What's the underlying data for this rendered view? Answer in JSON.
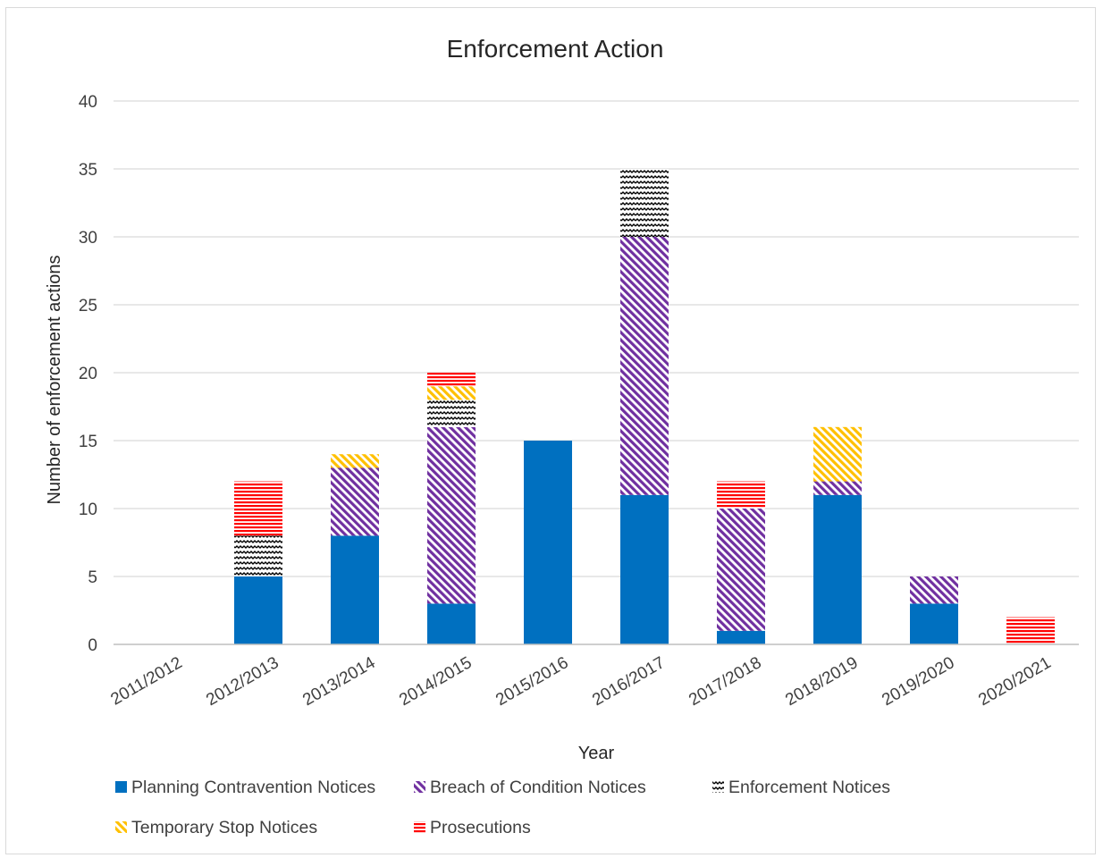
{
  "chart_data": {
    "type": "bar",
    "stacked": true,
    "title": "Enforcement Action",
    "xlabel": "Year",
    "ylabel": "Number of enforcement actions",
    "ylim": [
      0,
      40
    ],
    "yticks": [
      0,
      5,
      10,
      15,
      20,
      25,
      30,
      35,
      40
    ],
    "grid": true,
    "legend_position": "bottom",
    "categories": [
      "2011/2012",
      "2012/2013",
      "2013/2014",
      "2014/2015",
      "2015/2016",
      "2016/2017",
      "2017/2018",
      "2018/2019",
      "2019/2020",
      "2020/2021"
    ],
    "series": [
      {
        "name": "Planning Contravention Notices",
        "color": "#0070C0",
        "pattern": "solid",
        "values": [
          0,
          5,
          8,
          3,
          15,
          11,
          1,
          11,
          3,
          0
        ]
      },
      {
        "name": "Breach of Condition Notices",
        "color": "#7030A0",
        "pattern": "diagonal",
        "values": [
          0,
          0,
          5,
          13,
          0,
          19,
          9,
          1,
          2,
          0
        ]
      },
      {
        "name": "Enforcement Notices",
        "color": "#000000",
        "pattern": "wave",
        "values": [
          0,
          3,
          0,
          2,
          0,
          5,
          0,
          0,
          0,
          0
        ]
      },
      {
        "name": "Temporary Stop Notices",
        "color": "#FFC000",
        "pattern": "diagonal",
        "values": [
          0,
          0,
          1,
          1,
          0,
          0,
          0,
          4,
          0,
          0
        ]
      },
      {
        "name": "Prosecutions",
        "color": "#FF0000",
        "pattern": "horizontal",
        "values": [
          0,
          4,
          0,
          1,
          0,
          0,
          2,
          0,
          0,
          2
        ]
      }
    ]
  }
}
